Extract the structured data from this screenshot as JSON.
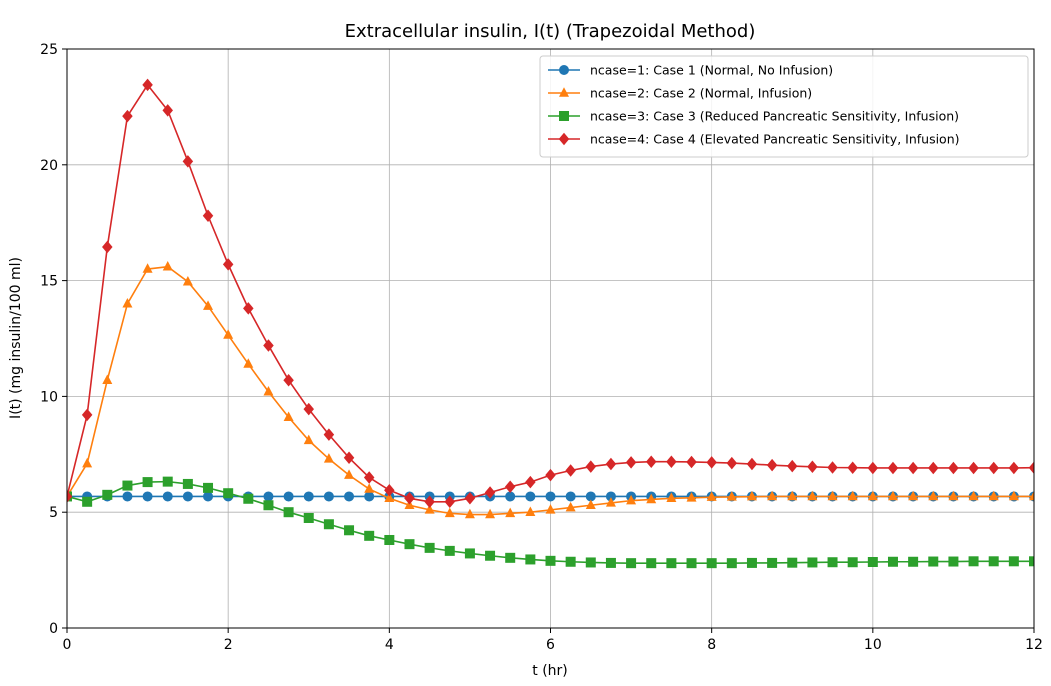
{
  "chart_data": {
    "type": "line",
    "title": "Extracellular insulin, I(t) (Trapezoidal Method)",
    "xlabel": "t (hr)",
    "ylabel": "I(t) (mg insulin/100 ml)",
    "xlim": [
      0,
      12
    ],
    "ylim": [
      0,
      25
    ],
    "xticks": [
      0,
      2,
      4,
      6,
      8,
      10,
      12
    ],
    "yticks": [
      0,
      5,
      10,
      15,
      20,
      25
    ],
    "grid": true,
    "legend_position": "top-right",
    "x": [
      0,
      0.25,
      0.5,
      0.75,
      1.0,
      1.25,
      1.5,
      1.75,
      2.0,
      2.25,
      2.5,
      2.75,
      3.0,
      3.25,
      3.5,
      3.75,
      4.0,
      4.25,
      4.5,
      4.75,
      5.0,
      5.25,
      5.5,
      5.75,
      6.0,
      6.25,
      6.5,
      6.75,
      7.0,
      7.25,
      7.5,
      7.75,
      8.0,
      8.25,
      8.5,
      8.75,
      9.0,
      9.25,
      9.5,
      9.75,
      10.0,
      10.25,
      10.5,
      10.75,
      11.0,
      11.25,
      11.5,
      11.75,
      12.0
    ],
    "series": [
      {
        "name": "ncase=1: Case 1 (Normal, No Infusion)",
        "color": "#1f77b4",
        "marker": "circle",
        "values": [
          5.68,
          5.68,
          5.68,
          5.68,
          5.68,
          5.68,
          5.68,
          5.68,
          5.68,
          5.68,
          5.68,
          5.68,
          5.68,
          5.68,
          5.68,
          5.68,
          5.68,
          5.68,
          5.68,
          5.68,
          5.68,
          5.68,
          5.68,
          5.68,
          5.68,
          5.68,
          5.68,
          5.68,
          5.68,
          5.68,
          5.68,
          5.68,
          5.68,
          5.68,
          5.68,
          5.68,
          5.68,
          5.68,
          5.68,
          5.68,
          5.68,
          5.68,
          5.68,
          5.68,
          5.68,
          5.68,
          5.68,
          5.68,
          5.68
        ]
      },
      {
        "name": "ncase=2: Case 2 (Normal, Infusion)",
        "color": "#ff7f0e",
        "marker": "triangle",
        "values": [
          5.68,
          7.1,
          10.7,
          14.0,
          15.5,
          15.6,
          14.95,
          13.9,
          12.65,
          11.4,
          10.2,
          9.1,
          8.1,
          7.3,
          6.6,
          6.0,
          5.6,
          5.3,
          5.1,
          4.95,
          4.9,
          4.9,
          4.95,
          5.0,
          5.1,
          5.2,
          5.3,
          5.4,
          5.5,
          5.55,
          5.6,
          5.62,
          5.65,
          5.66,
          5.67,
          5.68,
          5.68,
          5.68,
          5.68,
          5.68,
          5.68,
          5.68,
          5.68,
          5.68,
          5.68,
          5.68,
          5.68,
          5.68,
          5.68
        ]
      },
      {
        "name": "ncase=3: Case 3 (Reduced Pancreatic Sensitivity, Infusion)",
        "color": "#2ca02c",
        "marker": "square",
        "values": [
          5.68,
          5.45,
          5.75,
          6.15,
          6.3,
          6.32,
          6.22,
          6.05,
          5.82,
          5.58,
          5.3,
          5.0,
          4.75,
          4.48,
          4.22,
          3.98,
          3.8,
          3.62,
          3.46,
          3.33,
          3.22,
          3.12,
          3.03,
          2.96,
          2.9,
          2.86,
          2.83,
          2.81,
          2.8,
          2.8,
          2.8,
          2.8,
          2.8,
          2.8,
          2.81,
          2.81,
          2.82,
          2.83,
          2.84,
          2.84,
          2.85,
          2.86,
          2.86,
          2.87,
          2.87,
          2.88,
          2.88,
          2.88,
          2.88
        ]
      },
      {
        "name": "ncase=4: Case 4 (Elevated Pancreatic Sensitivity, Infusion)",
        "color": "#d62728",
        "marker": "diamond",
        "values": [
          5.68,
          9.2,
          16.45,
          22.1,
          23.45,
          22.35,
          20.15,
          17.8,
          15.7,
          13.8,
          12.2,
          10.7,
          9.45,
          8.35,
          7.35,
          6.5,
          5.95,
          5.6,
          5.45,
          5.45,
          5.6,
          5.85,
          6.1,
          6.3,
          6.6,
          6.8,
          6.97,
          7.08,
          7.15,
          7.18,
          7.18,
          7.17,
          7.15,
          7.12,
          7.08,
          7.03,
          6.99,
          6.96,
          6.93,
          6.92,
          6.91,
          6.91,
          6.91,
          6.91,
          6.91,
          6.91,
          6.91,
          6.91,
          6.92
        ]
      }
    ]
  }
}
